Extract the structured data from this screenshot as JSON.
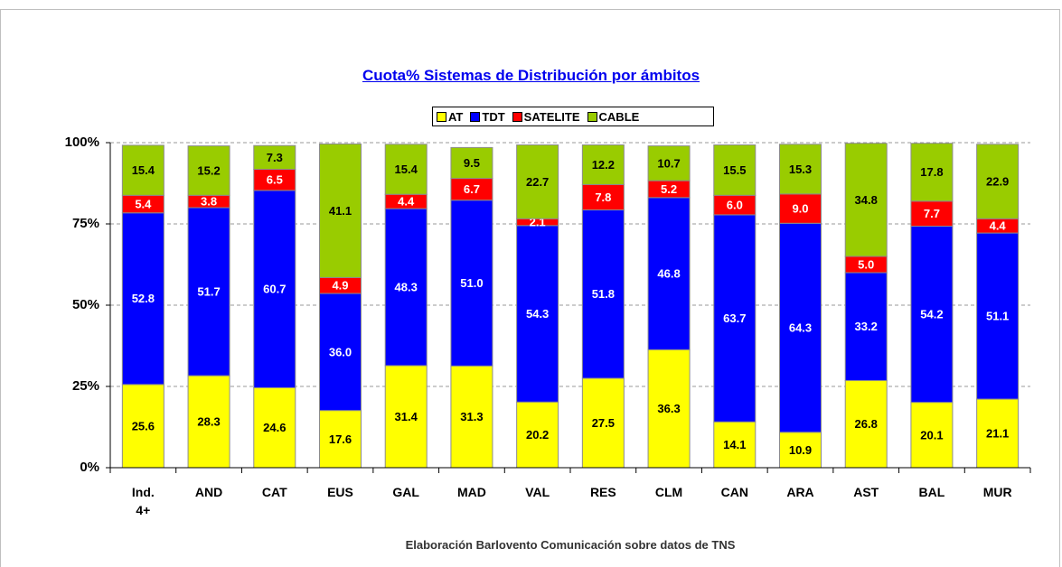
{
  "chart_data": {
    "type": "stacked_bar",
    "title": "Cuota% Sistemas de Distribución por ámbitos",
    "footer": "Elaboración Barlovento Comunicación sobre datos de TNS",
    "categories": [
      "Ind. 4+",
      "AND",
      "CAT",
      "EUS",
      "GAL",
      "MAD",
      "VAL",
      "RES",
      "CLM",
      "CAN",
      "ARA",
      "AST",
      "BAL",
      "MUR"
    ],
    "series": [
      {
        "name": "AT",
        "color": "#ffff00",
        "label_color": "#000000",
        "values": [
          25.6,
          28.3,
          24.6,
          17.6,
          31.4,
          31.3,
          20.2,
          27.5,
          36.3,
          14.1,
          10.9,
          26.8,
          20.1,
          21.1
        ],
        "value_labels": [
          "25.6",
          "28.3",
          "24.6",
          "17.6",
          "31.4",
          "31.3",
          "20.2",
          "27.5",
          "36.3",
          "14.1",
          "10.9",
          "26.8",
          "20.1",
          "21.1"
        ]
      },
      {
        "name": "TDT",
        "color": "#0000ff",
        "label_color": "#ffffff",
        "values": [
          52.8,
          51.7,
          60.7,
          36.0,
          48.3,
          51.0,
          54.3,
          51.8,
          46.8,
          63.7,
          64.3,
          33.2,
          54.2,
          51.1
        ],
        "value_labels": [
          "52.8",
          "51.7",
          "60.7",
          "36.0",
          "48.3",
          "51.0",
          "54.3",
          "51.8",
          "46.8",
          "63.7",
          "64.3",
          "33.2",
          "54.2",
          "51.1"
        ]
      },
      {
        "name": "SATELITE",
        "color": "#ff0000",
        "label_color": "#ffffff",
        "values": [
          5.4,
          3.8,
          6.5,
          4.9,
          4.4,
          6.7,
          2.1,
          7.8,
          5.2,
          6.0,
          9.0,
          5.0,
          7.7,
          4.4
        ],
        "value_labels": [
          "5.4",
          "3.8",
          "6.5",
          "4.9",
          "4.4",
          "6.7",
          "2.1",
          "7.8",
          "5.2",
          "6.0",
          "9.0",
          "5.0",
          "7.7",
          "4.4"
        ]
      },
      {
        "name": "CABLE",
        "color": "#99cc00",
        "label_color": "#000000",
        "values": [
          15.4,
          15.2,
          7.3,
          41.1,
          15.4,
          9.5,
          22.7,
          12.2,
          10.7,
          15.5,
          15.3,
          34.8,
          17.8,
          22.9
        ],
        "value_labels": [
          "15.4",
          "15.2",
          "7.3",
          "41.1",
          "15.4",
          "9.5",
          "22.7",
          "12.2",
          "10.7",
          "15.5",
          "15.3",
          "34.8",
          "17.8",
          "22.9"
        ]
      }
    ],
    "ylim": [
      0,
      100
    ],
    "yticks": [
      {
        "value": 0,
        "label": "0%"
      },
      {
        "value": 25,
        "label": "25%"
      },
      {
        "value": 50,
        "label": "50%"
      },
      {
        "value": 75,
        "label": "75%"
      },
      {
        "value": 100,
        "label": "100%"
      }
    ],
    "grid": true,
    "legend": "top"
  }
}
